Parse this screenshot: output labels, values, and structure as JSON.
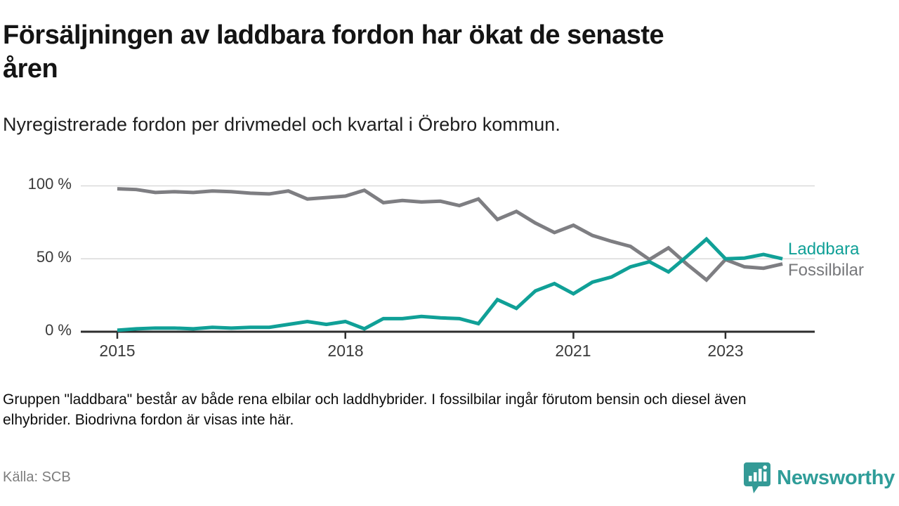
{
  "header": {
    "title_line1": "Försäljningen av laddbara fordon har ökat de senaste",
    "title_line2": "åren",
    "subtitle": "Nyregistrerade fordon per drivmedel och kvartal i Örebro kommun."
  },
  "chart_data": {
    "type": "line",
    "title": "Försäljningen av laddbara fordon har ökat de senaste åren",
    "subtitle": "Nyregistrerade fordon per drivmedel och kvartal i Örebro kommun.",
    "unit": "%",
    "grid": "horizontal-only",
    "legend_position": "right-end-of-lines",
    "ylim": [
      0,
      100
    ],
    "y_ticks": [
      "0 %",
      "50 %",
      "100 %"
    ],
    "y_tick_values": [
      0,
      50,
      100
    ],
    "x_ticks": [
      "2015",
      "2018",
      "2021",
      "2023"
    ],
    "x_tick_years": [
      2015,
      2018,
      2021,
      2023
    ],
    "x": [
      "2015 Q1",
      "2015 Q2",
      "2015 Q3",
      "2015 Q4",
      "2016 Q1",
      "2016 Q2",
      "2016 Q3",
      "2016 Q4",
      "2017 Q1",
      "2017 Q2",
      "2017 Q3",
      "2017 Q4",
      "2018 Q1",
      "2018 Q2",
      "2018 Q3",
      "2018 Q4",
      "2019 Q1",
      "2019 Q2",
      "2019 Q3",
      "2019 Q4",
      "2020 Q1",
      "2020 Q2",
      "2020 Q3",
      "2020 Q4",
      "2021 Q1",
      "2021 Q2",
      "2021 Q3",
      "2021 Q4",
      "2022 Q1",
      "2022 Q2",
      "2022 Q3",
      "2022 Q4",
      "2023 Q1",
      "2023 Q2",
      "2023 Q3",
      "2023 Q4"
    ],
    "series": [
      {
        "name": "Fossilbilar",
        "color": "#7e7e82",
        "values": [
          98,
          97.5,
          95.5,
          96,
          95.5,
          96.5,
          96,
          95,
          94.5,
          96.5,
          91,
          92,
          93,
          97,
          88.5,
          90,
          89,
          89.5,
          86.5,
          91,
          77,
          82.5,
          74.5,
          68,
          73,
          66,
          62,
          58.5,
          49.5,
          57.5,
          46,
          35.5,
          49.5,
          44.5,
          43.5,
          46.5
        ]
      },
      {
        "name": "Laddbara",
        "color": "#10a097",
        "values": [
          1,
          2,
          2.5,
          2.5,
          2,
          3,
          2.5,
          3,
          3,
          5,
          7,
          5,
          7,
          2,
          9,
          9,
          10.5,
          9.5,
          9,
          5.5,
          22,
          16,
          28,
          33,
          26,
          34,
          37.5,
          44.5,
          48,
          41,
          52,
          63.5,
          50,
          50.5,
          53,
          50
        ]
      }
    ]
  },
  "footer": {
    "note_line1": "Gruppen \"laddbara\" består av både rena elbilar och laddhybrider. I fossilbilar ingår förutom bensin och diesel även",
    "note_line2": "elhybrider. Biodrivna fordon är visas inte här.",
    "source": "Källa: SCB"
  },
  "brand": {
    "name": "Newsworthy",
    "logo_icon": "bar-chart-bubble-icon",
    "color": "#349a96"
  }
}
